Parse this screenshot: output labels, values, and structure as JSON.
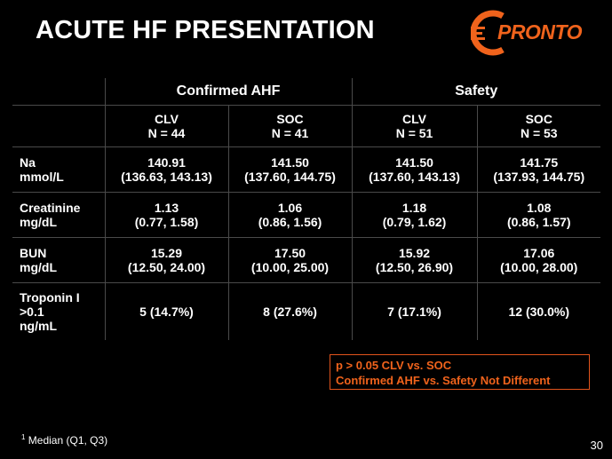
{
  "title": "ACUTE HF PRESENTATION",
  "logo": {
    "text": "PRONTO",
    "icon": "pronto-c-logo-icon",
    "color": "#f0631c"
  },
  "table": {
    "groups": [
      "Confirmed AHF",
      "Safety"
    ],
    "columns": [
      {
        "arm": "CLV",
        "n": "N = 44"
      },
      {
        "arm": "SOC",
        "n": "N = 41"
      },
      {
        "arm": "CLV",
        "n": "N = 51"
      },
      {
        "arm": "SOC",
        "n": "N = 53"
      }
    ],
    "rows": [
      {
        "label1": "Na",
        "label2": "mmol/L",
        "cells": [
          {
            "v": "140.91",
            "r": "(136.63, 143.13)"
          },
          {
            "v": "141.50",
            "r": "(137.60, 144.75)"
          },
          {
            "v": "141.50",
            "r": "(137.60, 143.13)"
          },
          {
            "v": "141.75",
            "r": "(137.93, 144.75)"
          }
        ]
      },
      {
        "label1": "Creatinine",
        "label2": "mg/dL",
        "cells": [
          {
            "v": "1.13",
            "r": "(0.77, 1.58)"
          },
          {
            "v": "1.06",
            "r": "(0.86, 1.56)"
          },
          {
            "v": "1.18",
            "r": "(0.79, 1.62)"
          },
          {
            "v": "1.08",
            "r": "(0.86, 1.57)"
          }
        ]
      },
      {
        "label1": "BUN",
        "label2": "mg/dL",
        "cells": [
          {
            "v": "15.29",
            "r": "(12.50, 24.00)"
          },
          {
            "v": "17.50",
            "r": "(10.00, 25.00)"
          },
          {
            "v": "15.92",
            "r": "(12.50, 26.90)"
          },
          {
            "v": "17.06",
            "r": "(10.00, 28.00)"
          }
        ]
      },
      {
        "label1": "Troponin I",
        "label2": ">0.1",
        "label3": "ng/mL",
        "cells": [
          {
            "v": "5  (14.7%)"
          },
          {
            "v": "8  (27.6%)"
          },
          {
            "v": "7  (17.1%)"
          },
          {
            "v": "12  (30.0%)"
          }
        ]
      }
    ]
  },
  "note": {
    "line1": "p > 0.05 CLV vs. SOC",
    "line2": "Confirmed AHF vs. Safety Not Different",
    "color": "#f0631c"
  },
  "footnote": {
    "sup": "1",
    "text": "Median (Q1, Q3)"
  },
  "page_number": "30"
}
